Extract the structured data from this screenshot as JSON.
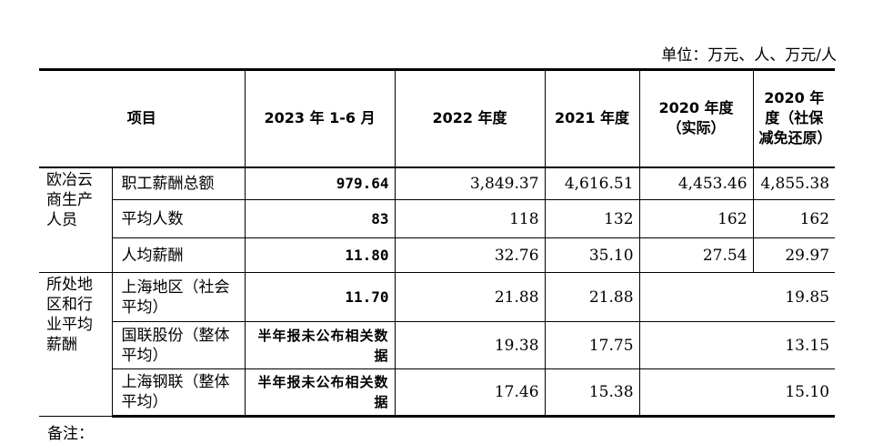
{
  "unit": "单位：万元、人、万元/人",
  "headers": {
    "item": "项目",
    "c2023": "2023 年 1-6 月",
    "c2022": "2022 年度",
    "c2021": "2021 年度",
    "c2020a": "2020 年度（实际）",
    "c2020b": "2020 年度（社保减免还原）"
  },
  "group1": {
    "label": "欧冶云商生产人员",
    "rows": [
      {
        "item": "职工薪酬总额",
        "v2023": "979.64",
        "v2022": "3,849.37",
        "v2021": "4,616.51",
        "v2020a": "4,453.46",
        "v2020b": "4,855.38"
      },
      {
        "item": "平均人数",
        "v2023": "83",
        "v2022": "118",
        "v2021": "132",
        "v2020a": "162",
        "v2020b": "162"
      },
      {
        "item": "人均薪酬",
        "v2023": "11.80",
        "v2022": "32.76",
        "v2021": "35.10",
        "v2020a": "27.54",
        "v2020b": "29.97"
      }
    ]
  },
  "group2": {
    "label": "所处地区和行业平均薪酬",
    "rows": [
      {
        "item": "上海地区（社会平均）",
        "v2023": "11.70",
        "v2022": "21.88",
        "v2021": "21.88",
        "v2020": "19.85"
      },
      {
        "item": "国联股份（整体平均）",
        "v2023": "半年报未公布相关数据",
        "v2022": "19.38",
        "v2021": "17.75",
        "v2020": "13.15"
      },
      {
        "item": "上海钢联（整体平均）",
        "v2023": "半年报未公布相关数据",
        "v2022": "17.46",
        "v2021": "15.38",
        "v2020": "15.10"
      }
    ]
  },
  "note": "备注："
}
